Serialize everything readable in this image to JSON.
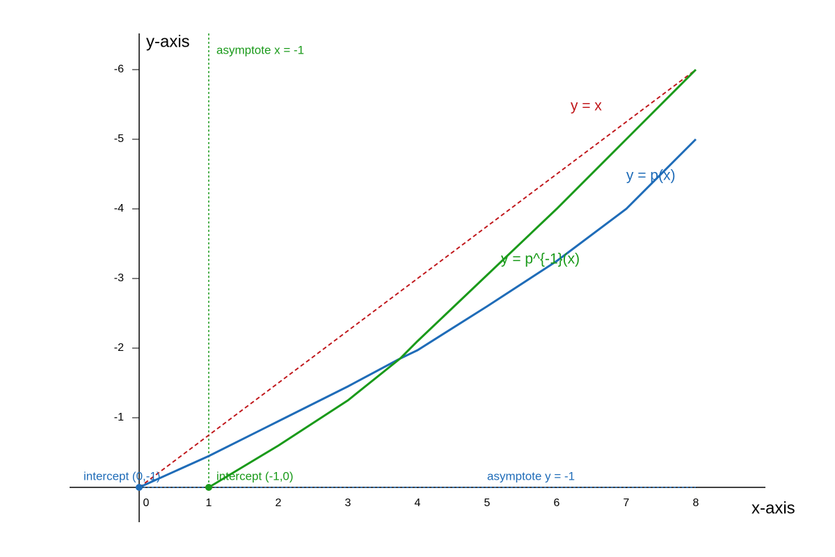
{
  "chart_data": {
    "type": "line",
    "x_label": "x-axis",
    "y_label": "y-axis",
    "xlim": [
      -1,
      9
    ],
    "ylim": [
      0.5,
      -6.5
    ],
    "xticks": [
      0,
      1,
      2,
      3,
      4,
      5,
      6,
      7,
      8
    ],
    "yticks": [
      -1,
      -2,
      -3,
      -4,
      -5,
      -6
    ],
    "series": [
      {
        "name": "y = x",
        "color": "#c0171b",
        "dashed": true,
        "x": [
          0,
          8
        ],
        "values": [
          0,
          -6
        ]
      },
      {
        "name": "y = p(x)",
        "color": "#1f6cb8",
        "dashed": false,
        "x": [
          0,
          1,
          2,
          3,
          3.75,
          4,
          5,
          6,
          7,
          8
        ],
        "values": [
          0,
          -0.45,
          -0.95,
          -1.45,
          -1.85,
          -1.97,
          -2.6,
          -3.25,
          -4.0,
          -5
        ]
      },
      {
        "name": "y = p^{-1}(x)",
        "color": "#1a9a1a",
        "dashed": false,
        "x": [
          1,
          2,
          3,
          3.75,
          4,
          5,
          6,
          7,
          8
        ],
        "values": [
          0,
          -0.6,
          -1.25,
          -1.85,
          -2.1,
          -3.05,
          -4.0,
          -5.0,
          -6
        ]
      }
    ],
    "vlines": [
      {
        "x": 1,
        "label": "asymptote x = -1",
        "color": "#1a9a1a"
      }
    ],
    "hlines": [
      {
        "y": 0,
        "label": "asymptote y = -1",
        "color": "#1f6cb8"
      }
    ],
    "points": [
      {
        "x": 0,
        "y": 0,
        "label": "intercept (0,-1)",
        "color": "#1f6cb8"
      },
      {
        "x": 1,
        "y": 0,
        "label": "intercept (-1,0)",
        "color": "#1a9a1a"
      }
    ]
  }
}
